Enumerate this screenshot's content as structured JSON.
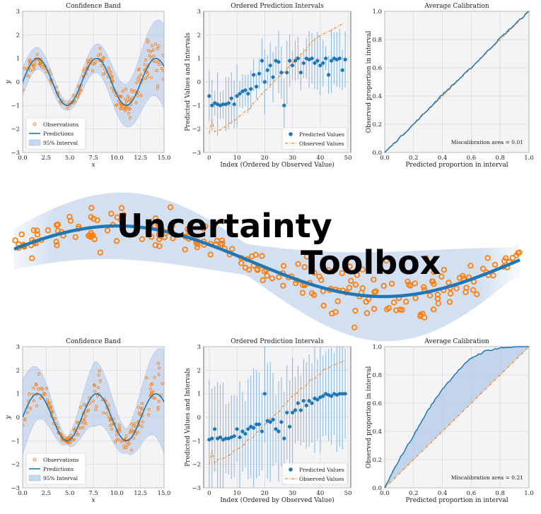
{
  "logo": {
    "line1": "Uncertainty",
    "line2": "Toolbox"
  },
  "colors": {
    "blue": "#1f77b4",
    "orange": "#ff7f0e",
    "band": "#aec7e8",
    "frame_bg": "#f4f4f6"
  },
  "chart_data": [
    {
      "id": "top-confidence-band",
      "type": "scatter",
      "title": "Confidence Band",
      "xlabel": "x",
      "ylabel": "y",
      "xlim": [
        0,
        15
      ],
      "ylim": [
        -3,
        3
      ],
      "xticks": [
        "0.0",
        "2.5",
        "5.0",
        "7.5",
        "10.0",
        "12.5",
        "15.0"
      ],
      "yticks": [
        "−3",
        "−2",
        "−1",
        "0",
        "1",
        "2",
        "3"
      ],
      "legend": {
        "placement": "lower-left",
        "entries": [
          "Observations",
          "Predictions",
          "95% Interval"
        ]
      },
      "curve": "sin(x)",
      "band_halfwidth": [
        [
          0,
          0.6
        ],
        [
          4.7,
          0.2
        ],
        [
          7.7,
          0.6
        ],
        [
          11,
          0.9
        ],
        [
          15,
          1.8
        ]
      ]
    },
    {
      "id": "top-ordered-intervals",
      "type": "scatter",
      "title": "Ordered Prediction Intervals",
      "xlabel": "Index (Ordered by Observed Value)",
      "ylabel": "Predicted Values and Intervals",
      "xlim": [
        -2,
        51
      ],
      "ylim": [
        -3,
        3
      ],
      "xticks": [
        "0",
        "10",
        "20",
        "30",
        "40",
        "50"
      ],
      "yticks": [
        "−3",
        "−2",
        "−1",
        "0",
        "1",
        "2",
        "3"
      ],
      "legend": {
        "placement": "lower-right",
        "entries": [
          "Predicted Values",
          "Observed Values"
        ]
      },
      "predicted": [
        -0.6,
        -1.0,
        -0.9,
        -0.95,
        -1.0,
        -0.95,
        -0.95,
        -0.9,
        -0.7,
        -0.95,
        -0.6,
        -0.5,
        -0.4,
        -0.35,
        -0.5,
        -0.3,
        0.3,
        -0.2,
        0.35,
        0.9,
        0.0,
        0.5,
        0.7,
        0.2,
        0.9,
        0.85,
        0.4,
        -1.0,
        0.4,
        0.9,
        0.7,
        0.9,
        1.0,
        0.4,
        0.8,
        1.0,
        0.95,
        1.0,
        0.8,
        0.9,
        0.7,
        0.8,
        1.0,
        0.3,
        0.9,
        1.0,
        0.95,
        1.0,
        0.5,
        0.95
      ],
      "observed_range": [
        -2.2,
        2.5
      ]
    },
    {
      "id": "top-calibration",
      "type": "line",
      "title": "Average Calibration",
      "xlabel": "Predicted proportion in interval",
      "ylabel": "Observed proportion in interval",
      "xlim": [
        0,
        1
      ],
      "ylim": [
        0,
        1
      ],
      "xticks": [
        "0.0",
        "0.2",
        "0.4",
        "0.6",
        "0.8",
        "1.0"
      ],
      "yticks": [
        "0.0",
        "0.2",
        "0.4",
        "0.6",
        "0.8",
        "1.0"
      ],
      "annotation": "Miscalibration area = 0.01",
      "observed": [
        [
          0,
          0
        ],
        [
          0.2,
          0.2
        ],
        [
          0.4,
          0.41
        ],
        [
          0.6,
          0.6
        ],
        [
          0.8,
          0.81
        ],
        [
          1,
          1
        ]
      ]
    },
    {
      "id": "bottom-confidence-band",
      "type": "scatter",
      "title": "Confidence Band",
      "xlabel": "x",
      "ylabel": "y",
      "xlim": [
        0,
        15
      ],
      "ylim": [
        -3,
        3
      ],
      "xticks": [
        "0.0",
        "2.5",
        "5.0",
        "7.5",
        "10.0",
        "12.5",
        "15.0"
      ],
      "yticks": [
        "−3",
        "−2",
        "−1",
        "0",
        "1",
        "2",
        "3"
      ],
      "legend": {
        "placement": "lower-left",
        "entries": [
          "Observations",
          "Predictions",
          "95% Interval"
        ]
      },
      "curve": "sin(x)",
      "band_halfwidth": [
        [
          0,
          1.6
        ],
        [
          4.7,
          0.15
        ],
        [
          7.7,
          1.4
        ],
        [
          11,
          0.5
        ],
        [
          15,
          2.2
        ]
      ]
    },
    {
      "id": "bottom-ordered-intervals",
      "type": "scatter",
      "title": "Ordered Prediction Intervals",
      "xlabel": "Index (Ordered by Observed Value)",
      "ylabel": "Predicted Values and Intervals",
      "xlim": [
        -2,
        51
      ],
      "ylim": [
        -3,
        3
      ],
      "xticks": [
        "0",
        "10",
        "20",
        "30",
        "40",
        "50"
      ],
      "yticks": [
        "−3",
        "−2",
        "−1",
        "0",
        "1",
        "2",
        "3"
      ],
      "legend": {
        "placement": "lower-right",
        "entries": [
          "Predicted Values",
          "Observed Values"
        ]
      },
      "predicted": [
        -0.95,
        -0.9,
        -0.5,
        -0.9,
        -0.85,
        -0.95,
        -0.9,
        -0.9,
        -0.85,
        -0.8,
        -0.5,
        -0.85,
        -0.6,
        -0.7,
        -0.5,
        -0.4,
        -0.45,
        -0.3,
        -0.3,
        -0.6,
        1.0,
        -0.15,
        -0.2,
        -0.1,
        -0.5,
        -0.6,
        -0.2,
        -0.9,
        0.2,
        -0.4,
        0.2,
        0.3,
        0.6,
        0.3,
        0.7,
        0.5,
        0.7,
        0.6,
        0.8,
        0.75,
        0.85,
        0.9,
        1.0,
        0.95,
        0.9,
        1.0,
        0.95,
        1.0,
        1.0,
        1.0
      ],
      "observed_range": [
        -2.0,
        2.4
      ]
    },
    {
      "id": "bottom-calibration",
      "type": "area",
      "title": "Average Calibration",
      "xlabel": "Predicted proportion in interval",
      "ylabel": "Observed proportion in interval",
      "xlim": [
        0,
        1
      ],
      "ylim": [
        0,
        1
      ],
      "xticks": [
        "0.0",
        "0.2",
        "0.4",
        "0.6",
        "0.8",
        "1.0"
      ],
      "yticks": [
        "0.0",
        "0.2",
        "0.4",
        "0.6",
        "0.8",
        "1.0"
      ],
      "annotation": "Miscalibration area = 0.21",
      "observed": [
        [
          0,
          0
        ],
        [
          0.05,
          0.1
        ],
        [
          0.1,
          0.2
        ],
        [
          0.2,
          0.37
        ],
        [
          0.3,
          0.55
        ],
        [
          0.4,
          0.7
        ],
        [
          0.5,
          0.82
        ],
        [
          0.6,
          0.92
        ],
        [
          0.7,
          0.97
        ],
        [
          0.8,
          0.99
        ],
        [
          0.9,
          1.0
        ],
        [
          1,
          1
        ]
      ]
    }
  ]
}
